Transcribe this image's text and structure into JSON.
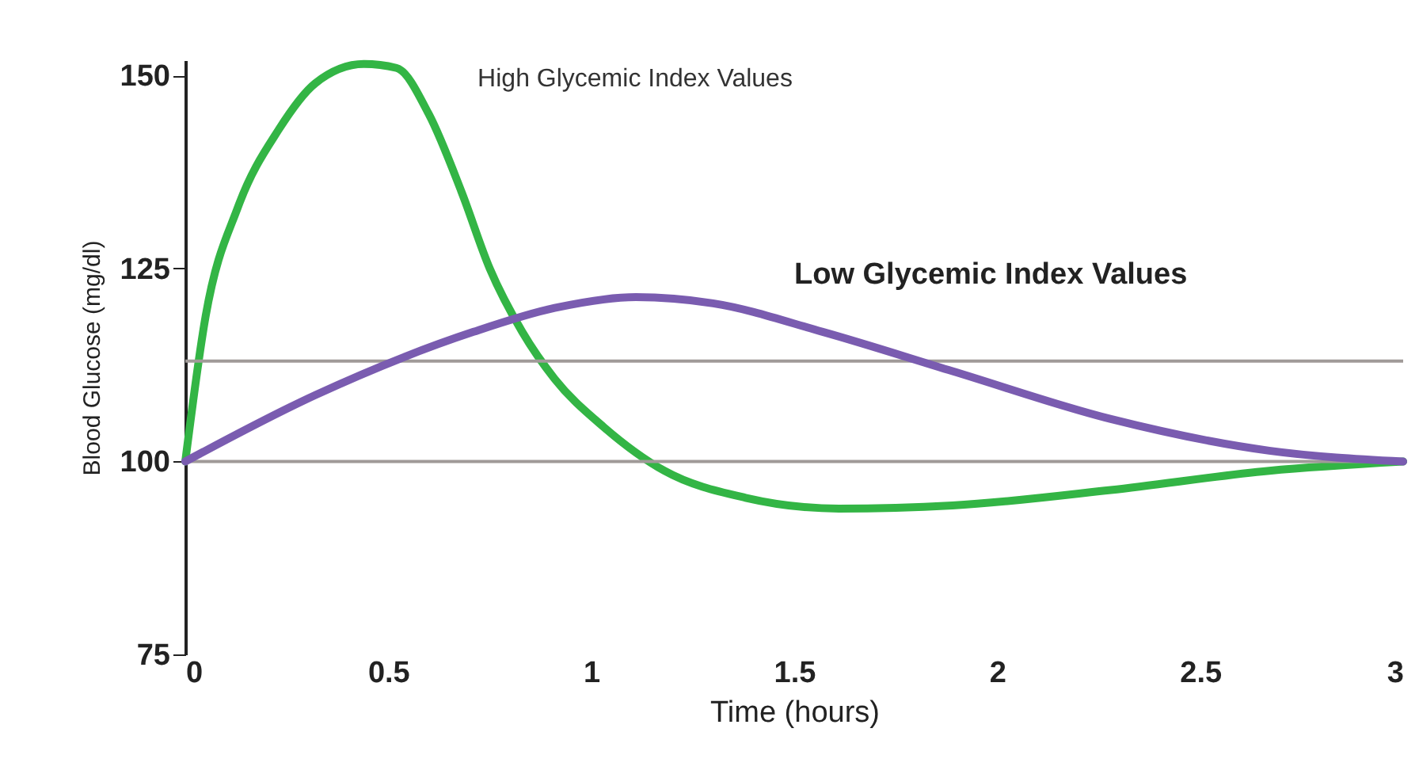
{
  "chart_data": {
    "type": "line",
    "xlabel": "Time (hours)",
    "ylabel": "Blood Glucose (mg/dl)",
    "xlim": [
      0,
      3
    ],
    "xticks": [
      0,
      0.5,
      1,
      1.5,
      2,
      2.5,
      3
    ],
    "ylim": [
      75,
      152
    ],
    "yticks": [
      75,
      100,
      125,
      150
    ],
    "grid": false,
    "marker": "none",
    "line_style": "solid",
    "series": [
      {
        "name": "High Glycemic Index Values",
        "color": "#33b545",
        "x": [
          0,
          0.05,
          0.13,
          0.23,
          0.32,
          0.44,
          0.52,
          0.6,
          0.68,
          0.75,
          0.83,
          0.91,
          1.03,
          1.18,
          1.38,
          1.61,
          1.89,
          2.28,
          2.67,
          3
        ],
        "values": [
          100,
          118.8,
          133,
          143,
          149,
          151.5,
          151,
          145,
          135,
          125,
          116.8,
          110.7,
          104.5,
          98.8,
          95.3,
          93.9,
          94.3,
          96.3,
          98.8,
          100
        ]
      },
      {
        "name": "Low Glycemic Index Values",
        "color": "#7a5cb0",
        "x": [
          0,
          0.32,
          0.71,
          0.91,
          1.11,
          1.3,
          1.57,
          1.89,
          2.28,
          2.67,
          3
        ],
        "values": [
          100,
          108.6,
          116.8,
          119.9,
          121.3,
          120.5,
          116.8,
          111.7,
          105.5,
          101.4,
          100
        ]
      }
    ],
    "ref_lines": [
      {
        "axis": "y",
        "value": 100,
        "color": "#a09a98"
      },
      {
        "axis": "y",
        "value": 113,
        "color": "#a09a98"
      }
    ]
  }
}
